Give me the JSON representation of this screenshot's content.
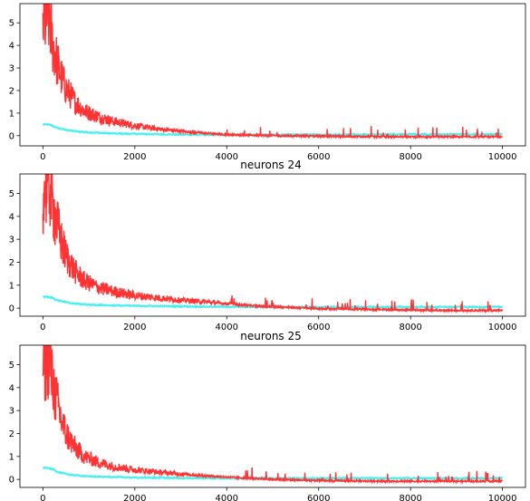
{
  "chart_data": [
    {
      "type": "line",
      "title": "",
      "xlim": [
        -500,
        10500
      ],
      "ylim": [
        -0.45,
        5.85
      ],
      "xticks": [
        0,
        2000,
        4000,
        6000,
        8000,
        10000
      ],
      "yticks": [
        0,
        1,
        2,
        3,
        4,
        5
      ],
      "grid": false,
      "series": [
        {
          "color": "#33eeee",
          "x": [
            0,
            100,
            200,
            300,
            400,
            600,
            800,
            1000,
            1500,
            2000,
            3000,
            4000,
            5000,
            6000,
            7000,
            8000,
            9000,
            10000
          ],
          "y": [
            0.5,
            0.5,
            0.45,
            0.35,
            0.3,
            0.22,
            0.18,
            0.15,
            0.1,
            0.08,
            0.05,
            0.04,
            0.04,
            0.05,
            0.05,
            0.06,
            0.06,
            0.06
          ]
        },
        {
          "color": "#ff3333",
          "x": [
            0,
            100,
            150,
            200,
            300,
            400,
            500,
            700,
            900,
            1200,
            1500,
            2000,
            2500,
            3000,
            3500,
            4000,
            5000,
            6000,
            7000,
            8000,
            9000,
            10000
          ],
          "y": [
            4.9,
            5.3,
            5.2,
            4.2,
            3.3,
            2.6,
            2.1,
            1.5,
            1.1,
            0.85,
            0.65,
            0.45,
            0.3,
            0.2,
            0.12,
            0.05,
            0.0,
            -0.02,
            -0.04,
            -0.05,
            -0.05,
            -0.05
          ]
        }
      ]
    },
    {
      "type": "line",
      "title": "neurons 24",
      "xlim": [
        -500,
        10500
      ],
      "ylim": [
        -0.35,
        5.85
      ],
      "xticks": [
        0,
        2000,
        4000,
        6000,
        8000,
        10000
      ],
      "yticks": [
        0,
        1,
        2,
        3,
        4,
        5
      ],
      "grid": false,
      "series": [
        {
          "color": "#33eeee",
          "x": [
            0,
            100,
            200,
            300,
            400,
            600,
            800,
            1000,
            1500,
            2000,
            3000,
            4000,
            5000,
            6000,
            7000,
            8000,
            9000,
            10000
          ],
          "y": [
            0.5,
            0.5,
            0.45,
            0.35,
            0.3,
            0.22,
            0.18,
            0.15,
            0.12,
            0.1,
            0.08,
            0.06,
            0.05,
            0.05,
            0.05,
            0.05,
            0.05,
            0.05
          ]
        },
        {
          "color": "#ff3333",
          "x": [
            0,
            100,
            150,
            200,
            300,
            400,
            500,
            700,
            900,
            1200,
            1500,
            2000,
            2500,
            3000,
            3500,
            4000,
            4500,
            5000,
            6000,
            7000,
            8000,
            9000,
            10000
          ],
          "y": [
            4.9,
            5.4,
            5.3,
            4.6,
            3.7,
            2.9,
            2.3,
            1.6,
            1.2,
            0.9,
            0.75,
            0.55,
            0.45,
            0.35,
            0.28,
            0.2,
            0.12,
            0.06,
            -0.02,
            -0.05,
            -0.08,
            -0.1,
            -0.1
          ]
        }
      ]
    },
    {
      "type": "line",
      "title": "neurons 25",
      "xlim": [
        -500,
        10500
      ],
      "ylim": [
        -0.35,
        5.85
      ],
      "xticks": [
        0,
        2000,
        4000,
        6000,
        8000,
        10000
      ],
      "yticks": [
        0,
        1,
        2,
        3,
        4,
        5
      ],
      "grid": false,
      "series": [
        {
          "color": "#33eeee",
          "x": [
            0,
            100,
            200,
            300,
            400,
            600,
            800,
            1000,
            1500,
            2000,
            3000,
            4000,
            5000,
            6000,
            7000,
            8000,
            9000,
            10000
          ],
          "y": [
            0.5,
            0.5,
            0.45,
            0.35,
            0.28,
            0.2,
            0.16,
            0.13,
            0.1,
            0.08,
            0.06,
            0.05,
            0.05,
            0.05,
            0.05,
            0.05,
            0.05,
            0.05
          ]
        },
        {
          "color": "#ff3333",
          "x": [
            0,
            100,
            150,
            200,
            300,
            400,
            500,
            700,
            900,
            1200,
            1500,
            2000,
            2500,
            3000,
            3500,
            4000,
            4500,
            5000,
            6000,
            7000,
            8000,
            9000,
            10000
          ],
          "y": [
            4.8,
            5.3,
            5.2,
            4.3,
            3.4,
            2.6,
            2.0,
            1.4,
            1.0,
            0.75,
            0.58,
            0.42,
            0.32,
            0.24,
            0.16,
            0.1,
            0.05,
            0.0,
            -0.05,
            -0.07,
            -0.08,
            -0.08,
            -0.08
          ]
        }
      ]
    }
  ]
}
